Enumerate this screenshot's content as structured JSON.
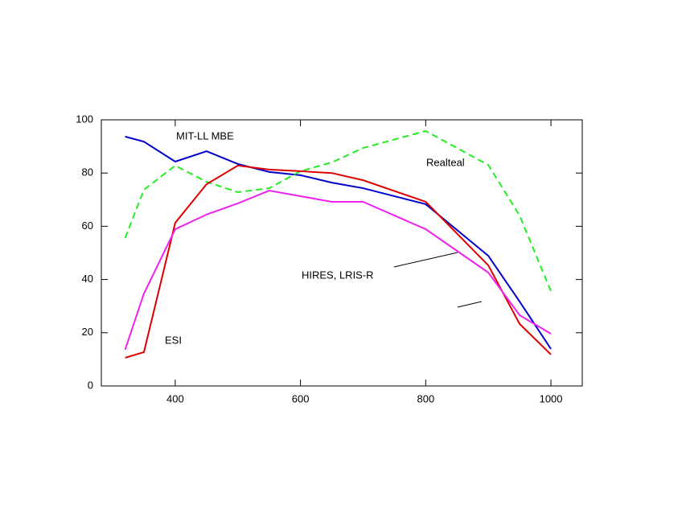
{
  "chart_data": {
    "type": "line",
    "x": [
      320,
      350,
      400,
      450,
      500,
      550,
      600,
      650,
      700,
      800,
      900,
      950,
      1000
    ],
    "series": [
      {
        "name": "MIT-LL MBE",
        "color": "#0000cc",
        "dash": false,
        "values": [
          93.7,
          91.8,
          84.3,
          88.2,
          83.4,
          80.4,
          79.2,
          76.4,
          74.3,
          68.3,
          48.9,
          31.7,
          13.9
        ]
      },
      {
        "name": "Realteal",
        "color": "#22ee22",
        "dash": true,
        "values": [
          55.6,
          73.7,
          82.8,
          76.7,
          72.8,
          74.3,
          80.7,
          84.0,
          89.4,
          95.8,
          83.0,
          64.0,
          35.6
        ]
      },
      {
        "name": "ESI",
        "color": "#dd0000",
        "dash": false,
        "values": [
          10.6,
          12.7,
          61.3,
          75.8,
          82.8,
          81.3,
          80.7,
          80.0,
          77.3,
          69.2,
          45.3,
          23.3,
          11.8
        ]
      },
      {
        "name": "HIRES, LRIS-R",
        "color": "#ee22ee",
        "dash": false,
        "values": [
          13.6,
          34.7,
          58.9,
          64.4,
          68.6,
          73.4,
          71.3,
          69.2,
          69.2,
          58.9,
          42.6,
          26.6,
          19.6
        ]
      }
    ],
    "xlim": [
      282,
      1050
    ],
    "ylim": [
      0,
      100
    ],
    "xticks": [
      400,
      600,
      800,
      1000
    ],
    "yticks": [
      0,
      20,
      40,
      60,
      80,
      100
    ]
  }
}
